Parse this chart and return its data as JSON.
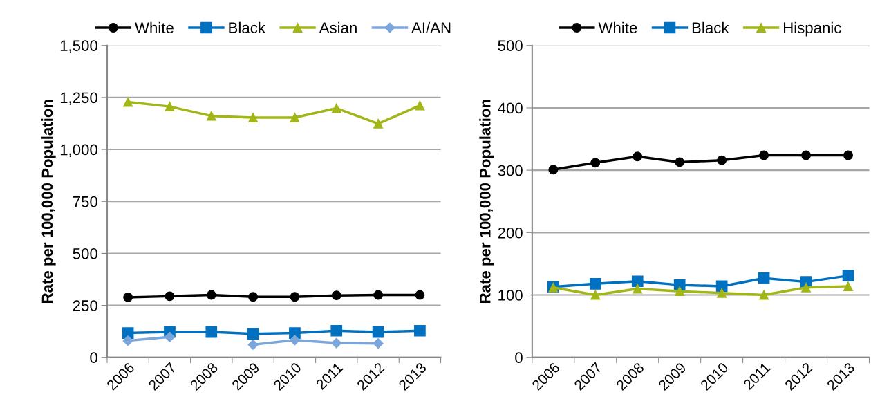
{
  "chart_data": [
    {
      "type": "line",
      "ylabel": "Rate per 100,000 Population",
      "categories": [
        "2006",
        "2007",
        "2008",
        "2009",
        "2010",
        "2011",
        "2012",
        "2013"
      ],
      "series": [
        {
          "name": "White",
          "color": "#000000",
          "marker": "circle",
          "values": [
            289,
            294,
            300,
            291,
            291,
            298,
            300,
            300
          ]
        },
        {
          "name": "Black",
          "color": "#0070c0",
          "marker": "square",
          "values": [
            117,
            122,
            122,
            113,
            117,
            128,
            122,
            128
          ]
        },
        {
          "name": "Asian",
          "color": "#a2b617",
          "marker": "triangle",
          "values": [
            1228,
            1206,
            1161,
            1153,
            1153,
            1198,
            1124,
            1211
          ]
        },
        {
          "name": "AI/AN",
          "color": "#7aa6dc",
          "marker": "diamond",
          "values": [
            80,
            98,
            null,
            61,
            83,
            69,
            67,
            null
          ]
        }
      ],
      "ylim": [
        0,
        1500
      ],
      "yticks": [
        0,
        250,
        500,
        750,
        {
          "value": 1000,
          "label": "1,000"
        },
        {
          "value": 1250,
          "label": "1,250"
        },
        {
          "value": 1500,
          "label": "1,500"
        }
      ],
      "grid": "y",
      "legend": "top",
      "line_style": "solid"
    },
    {
      "type": "line",
      "ylabel": "Rate per 100,000 Population",
      "categories": [
        "2006",
        "2007",
        "2008",
        "2009",
        "2010",
        "2011",
        "2012",
        "2013"
      ],
      "series": [
        {
          "name": "White",
          "color": "#000000",
          "marker": "circle",
          "values": [
            301,
            312,
            322,
            313,
            316,
            324,
            324,
            324
          ]
        },
        {
          "name": "Black",
          "color": "#0070c0",
          "marker": "square",
          "values": [
            113,
            118,
            122,
            116,
            114,
            127,
            121,
            131
          ]
        },
        {
          "name": "Hispanic",
          "color": "#a2b617",
          "marker": "triangle",
          "values": [
            112,
            100,
            110,
            106,
            103,
            100,
            112,
            114
          ]
        }
      ],
      "ylim": [
        0,
        500
      ],
      "yticks": [
        0,
        100,
        200,
        300,
        400,
        500
      ],
      "grid": "y",
      "legend": "top",
      "line_style": "solid"
    }
  ]
}
